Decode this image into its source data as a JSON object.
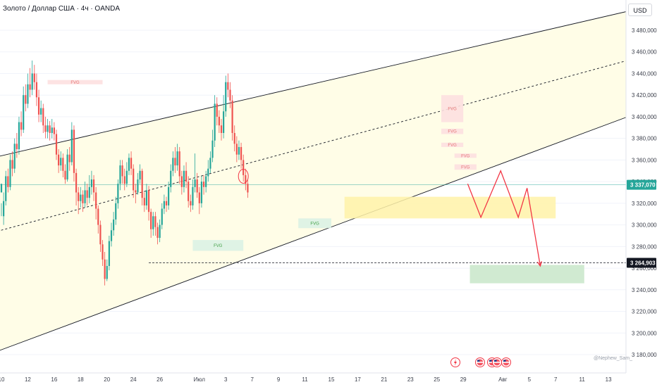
{
  "header": {
    "title": "Золото / Доллар США · 4ч · OANDA",
    "currency": "USD"
  },
  "watermark": "@Nephew_Sam_",
  "colors": {
    "up": "#26a69a",
    "down": "#ef5350",
    "channel_fill": "#fffde7",
    "channel_line": "#131722",
    "price_line": "#26a69a",
    "zone_yellow": "#fff2a8",
    "zone_green": "#c8e6c9",
    "projection": "#f23645"
  },
  "chart_data": {
    "type": "candlestick",
    "title": "Золото / Доллар США · 4ч · OANDA",
    "y_axis_label": "USD",
    "ylim": [
      3165,
      3500
    ],
    "y_ticks": [
      {
        "value": 3480,
        "label": "3 480,000"
      },
      {
        "value": 3460,
        "label": "3 460,000"
      },
      {
        "value": 3440,
        "label": "3 440,000"
      },
      {
        "value": 3420,
        "label": "3 420,000"
      },
      {
        "value": 3400,
        "label": "3 400,000"
      },
      {
        "value": 3380,
        "label": "3 380,000"
      },
      {
        "value": 3360,
        "label": "3 360,000"
      },
      {
        "value": 3340,
        "label": "3 340,000"
      },
      {
        "value": 3320,
        "label": "3 320,000"
      },
      {
        "value": 3300,
        "label": "3 300,000"
      },
      {
        "value": 3280,
        "label": "3 280,000"
      },
      {
        "value": 3260,
        "label": "3 260,000"
      },
      {
        "value": 3240,
        "label": "3 240,000"
      },
      {
        "value": 3220,
        "label": "3 220,000"
      },
      {
        "value": 3200,
        "label": "3 200,000"
      },
      {
        "value": 3180,
        "label": "3 180,000"
      }
    ],
    "x_ticks": [
      {
        "pos": 0,
        "label": "10"
      },
      {
        "pos": 12,
        "label": "12"
      },
      {
        "pos": 24,
        "label": "16"
      },
      {
        "pos": 36,
        "label": "18"
      },
      {
        "pos": 48,
        "label": "20"
      },
      {
        "pos": 60,
        "label": "24"
      },
      {
        "pos": 72,
        "label": "26"
      },
      {
        "pos": 90,
        "label": "Июл"
      },
      {
        "pos": 102,
        "label": "3"
      },
      {
        "pos": 114,
        "label": "7"
      },
      {
        "pos": 126,
        "label": "9"
      },
      {
        "pos": 138,
        "label": "11"
      },
      {
        "pos": 150,
        "label": "15"
      },
      {
        "pos": 162,
        "label": "17"
      },
      {
        "pos": 174,
        "label": "21"
      },
      {
        "pos": 186,
        "label": "23"
      },
      {
        "pos": 198,
        "label": "25"
      },
      {
        "pos": 210,
        "label": "29"
      },
      {
        "pos": 228,
        "label": "Авг"
      },
      {
        "pos": 240,
        "label": "5"
      },
      {
        "pos": 252,
        "label": "7"
      },
      {
        "pos": 264,
        "label": "11"
      },
      {
        "pos": 276,
        "label": "13"
      }
    ],
    "candles": [
      [
        3330,
        3338,
        3320,
        3308
      ],
      [
        3308,
        3322,
        3330,
        3300
      ],
      [
        3322,
        3345,
        3350,
        3318
      ],
      [
        3345,
        3335,
        3352,
        3330
      ],
      [
        3335,
        3360,
        3365,
        3332
      ],
      [
        3360,
        3352,
        3368,
        3345
      ],
      [
        3352,
        3375,
        3380,
        3348
      ],
      [
        3375,
        3370,
        3385,
        3362
      ],
      [
        3370,
        3395,
        3400,
        3365
      ],
      [
        3395,
        3388,
        3405,
        3382
      ],
      [
        3388,
        3420,
        3428,
        3385
      ],
      [
        3420,
        3412,
        3430,
        3405
      ],
      [
        3412,
        3430,
        3440,
        3408
      ],
      [
        3430,
        3425,
        3445,
        3418
      ],
      [
        3425,
        3440,
        3452,
        3420
      ],
      [
        3440,
        3432,
        3448,
        3425
      ],
      [
        3432,
        3418,
        3440,
        3410
      ],
      [
        3418,
        3402,
        3425,
        3395
      ],
      [
        3402,
        3408,
        3415,
        3395
      ],
      [
        3408,
        3392,
        3412,
        3385
      ],
      [
        3392,
        3386,
        3400,
        3380
      ],
      [
        3386,
        3392,
        3398,
        3380
      ],
      [
        3392,
        3385,
        3396,
        3378
      ],
      [
        3385,
        3390,
        3398,
        3380
      ],
      [
        3390,
        3384,
        3395,
        3378
      ],
      [
        3384,
        3365,
        3388,
        3360
      ],
      [
        3365,
        3355,
        3370,
        3348
      ],
      [
        3355,
        3362,
        3368,
        3350
      ],
      [
        3362,
        3350,
        3366,
        3344
      ],
      [
        3350,
        3342,
        3356,
        3338
      ],
      [
        3342,
        3365,
        3370,
        3340
      ],
      [
        3365,
        3358,
        3372,
        3350
      ],
      [
        3358,
        3388,
        3395,
        3355
      ],
      [
        3388,
        3348,
        3392,
        3340
      ],
      [
        3348,
        3330,
        3352,
        3318
      ],
      [
        3330,
        3322,
        3335,
        3310
      ],
      [
        3322,
        3328,
        3335,
        3316
      ],
      [
        3328,
        3320,
        3332,
        3312
      ],
      [
        3320,
        3332,
        3340,
        3316
      ],
      [
        3332,
        3325,
        3338,
        3318
      ],
      [
        3325,
        3335,
        3346,
        3320
      ],
      [
        3335,
        3342,
        3350,
        3328
      ],
      [
        3342,
        3330,
        3346,
        3322
      ],
      [
        3330,
        3315,
        3335,
        3305
      ],
      [
        3315,
        3300,
        3318,
        3292
      ],
      [
        3300,
        3282,
        3304,
        3275
      ],
      [
        3282,
        3268,
        3286,
        3262
      ],
      [
        3268,
        3250,
        3275,
        3244
      ],
      [
        3250,
        3262,
        3268,
        3248
      ],
      [
        3262,
        3285,
        3290,
        3258
      ],
      [
        3285,
        3295,
        3302,
        3280
      ],
      [
        3295,
        3305,
        3312,
        3290
      ],
      [
        3305,
        3320,
        3326,
        3300
      ],
      [
        3320,
        3338,
        3342,
        3315
      ],
      [
        3338,
        3355,
        3360,
        3332
      ],
      [
        3355,
        3345,
        3360,
        3338
      ],
      [
        3345,
        3338,
        3352,
        3332
      ],
      [
        3338,
        3350,
        3358,
        3335
      ],
      [
        3350,
        3362,
        3366,
        3346
      ],
      [
        3362,
        3352,
        3368,
        3346
      ],
      [
        3352,
        3332,
        3356,
        3325
      ],
      [
        3332,
        3330,
        3338,
        3320
      ],
      [
        3330,
        3342,
        3348,
        3328
      ],
      [
        3342,
        3350,
        3356,
        3338
      ],
      [
        3350,
        3325,
        3352,
        3318
      ],
      [
        3325,
        3318,
        3330,
        3312
      ],
      [
        3318,
        3332,
        3338,
        3314
      ],
      [
        3332,
        3312,
        3336,
        3304
      ],
      [
        3312,
        3296,
        3315,
        3288
      ],
      [
        3296,
        3308,
        3312,
        3290
      ],
      [
        3308,
        3298,
        3312,
        3290
      ],
      [
        3298,
        3288,
        3302,
        3282
      ],
      [
        3288,
        3300,
        3305,
        3284
      ],
      [
        3300,
        3315,
        3320,
        3296
      ],
      [
        3315,
        3322,
        3328,
        3310
      ],
      [
        3322,
        3318,
        3326,
        3312
      ],
      [
        3318,
        3335,
        3340,
        3314
      ],
      [
        3335,
        3350,
        3356,
        3330
      ],
      [
        3350,
        3362,
        3368,
        3345
      ],
      [
        3362,
        3355,
        3372,
        3348
      ],
      [
        3355,
        3368,
        3375,
        3350
      ],
      [
        3368,
        3345,
        3372,
        3338
      ],
      [
        3345,
        3335,
        3350,
        3328
      ],
      [
        3335,
        3350,
        3355,
        3330
      ],
      [
        3350,
        3340,
        3358,
        3334
      ],
      [
        3340,
        3322,
        3345,
        3316
      ],
      [
        3322,
        3318,
        3328,
        3312
      ],
      [
        3318,
        3335,
        3342,
        3314
      ],
      [
        3335,
        3342,
        3366,
        3330
      ],
      [
        3342,
        3330,
        3348,
        3325
      ],
      [
        3330,
        3320,
        3335,
        3310
      ],
      [
        3320,
        3340,
        3345,
        3316
      ],
      [
        3340,
        3335,
        3346,
        3328
      ],
      [
        3335,
        3345,
        3350,
        3330
      ],
      [
        3345,
        3352,
        3360,
        3340
      ],
      [
        3352,
        3362,
        3368,
        3348
      ],
      [
        3362,
        3378,
        3388,
        3358
      ],
      [
        3378,
        3412,
        3420,
        3372
      ],
      [
        3412,
        3400,
        3418,
        3392
      ],
      [
        3400,
        3392,
        3406,
        3385
      ],
      [
        3392,
        3385,
        3398,
        3378
      ],
      [
        3385,
        3405,
        3420,
        3380
      ],
      [
        3405,
        3432,
        3438,
        3400
      ],
      [
        3432,
        3425,
        3440,
        3418
      ],
      [
        3425,
        3415,
        3432,
        3408
      ],
      [
        3415,
        3385,
        3420,
        3378
      ],
      [
        3385,
        3375,
        3392,
        3368
      ],
      [
        3375,
        3365,
        3382,
        3358
      ],
      [
        3365,
        3372,
        3378,
        3360
      ],
      [
        3372,
        3360,
        3376,
        3352
      ],
      [
        3360,
        3346,
        3365,
        3340
      ],
      [
        3346,
        3338,
        3352,
        3332
      ],
      [
        3338,
        3330,
        3342,
        3325
      ]
    ],
    "channel_lines": [
      {
        "name": "upper",
        "from": [
          -2,
          3363
        ],
        "to": [
          290,
          3500
        ]
      },
      {
        "name": "middle",
        "from": [
          -2,
          3294
        ],
        "to": [
          290,
          3455
        ]
      },
      {
        "name": "lower",
        "from": [
          -2,
          3183
        ],
        "to": [
          290,
          3404
        ]
      }
    ],
    "current_price": {
      "value": 3337.07,
      "label": "3 337,070"
    },
    "target_level": {
      "value": 3264.903,
      "label": "3 264,903",
      "from": 67
    },
    "zones": [
      {
        "type": "demand",
        "x_from": 156,
        "x_to": 252,
        "y_from": 3306,
        "y_to": 3326
      },
      {
        "type": "target",
        "x_from": 213,
        "x_to": 265,
        "y_from": 3246,
        "y_to": 3263
      }
    ],
    "fvgs": [
      {
        "label": "FVG",
        "x_from": 21,
        "x_to": 46,
        "y_from": 3430,
        "y_to": 3434,
        "dir": "bear"
      },
      {
        "label": "FVG",
        "x_from": 200,
        "x_to": 210,
        "y_from": 3395,
        "y_to": 3420,
        "dir": "bear"
      },
      {
        "label": "FVG",
        "x_from": 200,
        "x_to": 210,
        "y_from": 3384,
        "y_to": 3389,
        "dir": "bear"
      },
      {
        "label": "FVG",
        "x_from": 200,
        "x_to": 210,
        "y_from": 3372,
        "y_to": 3376,
        "dir": "bear"
      },
      {
        "label": "FVG",
        "x_from": 206,
        "x_to": 216,
        "y_from": 3362,
        "y_to": 3366,
        "dir": "bear"
      },
      {
        "label": "FVG",
        "x_from": 206,
        "x_to": 216,
        "y_from": 3351,
        "y_to": 3356,
        "dir": "bear"
      },
      {
        "label": "FVG",
        "x_from": 135,
        "x_to": 150,
        "y_from": 3297,
        "y_to": 3306,
        "dir": "bull"
      },
      {
        "label": "FVG",
        "x_from": 87,
        "x_to": 110,
        "y_from": 3276,
        "y_to": 3286,
        "dir": "bull"
      }
    ],
    "projection_path": [
      [
        212,
        3338
      ],
      [
        218,
        3307
      ],
      [
        227,
        3350
      ],
      [
        235,
        3307
      ],
      [
        239,
        3334
      ],
      [
        245,
        3262
      ]
    ]
  }
}
